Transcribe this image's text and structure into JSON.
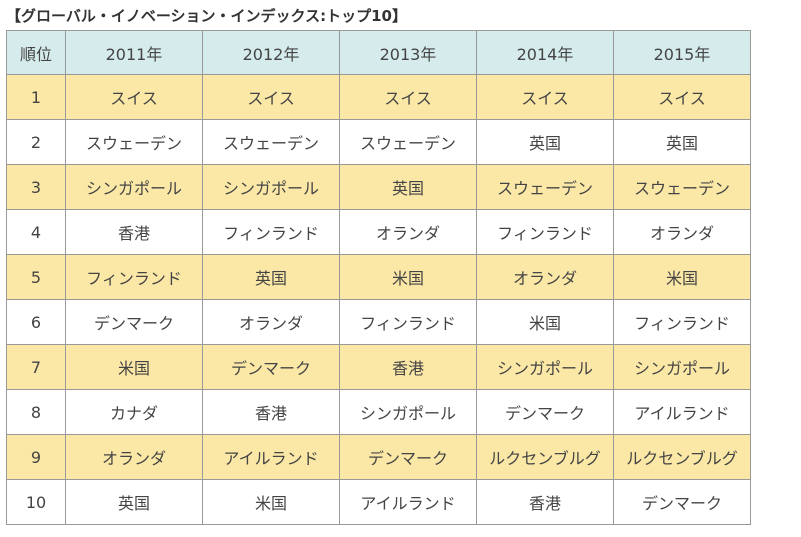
{
  "title": "【グローバル・イノベーション・インデックス:トップ10】",
  "table": {
    "headers": [
      "順位",
      "2011年",
      "2012年",
      "2013年",
      "2014年",
      "2015年"
    ],
    "rows": [
      [
        "1",
        "スイス",
        "スイス",
        "スイス",
        "スイス",
        "スイス"
      ],
      [
        "2",
        "スウェーデン",
        "スウェーデン",
        "スウェーデン",
        "英国",
        "英国"
      ],
      [
        "3",
        "シンガポール",
        "シンガポール",
        "英国",
        "スウェーデン",
        "スウェーデン"
      ],
      [
        "4",
        "香港",
        "フィンランド",
        "オランダ",
        "フィンランド",
        "オランダ"
      ],
      [
        "5",
        "フィンランド",
        "英国",
        "米国",
        "オランダ",
        "米国"
      ],
      [
        "6",
        "デンマーク",
        "オランダ",
        "フィンランド",
        "米国",
        "フィンランド"
      ],
      [
        "7",
        "米国",
        "デンマーク",
        "香港",
        "シンガポール",
        "シンガポール"
      ],
      [
        "8",
        "カナダ",
        "香港",
        "シンガポール",
        "デンマーク",
        "アイルランド"
      ],
      [
        "9",
        "オランダ",
        "アイルランド",
        "デンマーク",
        "ルクセンブルグ",
        "ルクセンブルグ"
      ],
      [
        "10",
        "英国",
        "米国",
        "アイルランド",
        "香港",
        "デンマーク"
      ]
    ]
  },
  "colors": {
    "header_bg": "#d6ecec",
    "odd_row_bg": "#fbe8a6",
    "even_row_bg": "#ffffff",
    "border": "#999999"
  }
}
